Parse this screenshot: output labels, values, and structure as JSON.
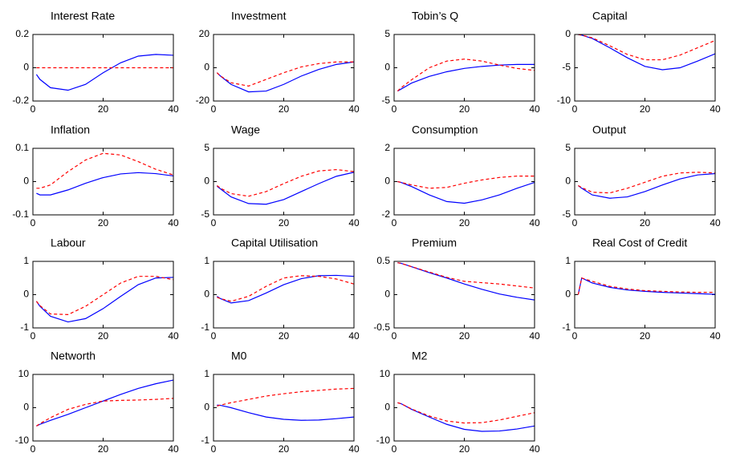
{
  "chart_data": [
    {
      "type": "line",
      "title": "Interest Rate",
      "x": [
        1,
        2,
        5,
        10,
        15,
        20,
        25,
        30,
        35,
        40
      ],
      "xlim": [
        0,
        40
      ],
      "xticks": [
        0,
        20,
        40
      ],
      "ylim": [
        -0.2,
        0.2
      ],
      "yticks": [
        -0.2,
        0,
        0.2
      ],
      "grid": false,
      "series": [
        {
          "color": "#0000ff",
          "line_style": "solid",
          "values": [
            -0.04,
            -0.07,
            -0.12,
            -0.135,
            -0.1,
            -0.03,
            0.03,
            0.07,
            0.08,
            0.075
          ]
        },
        {
          "color": "#ff0000",
          "line_style": "dashed",
          "values": [
            0,
            0,
            0,
            0,
            0,
            0,
            0,
            0,
            0,
            0
          ]
        }
      ]
    },
    {
      "type": "line",
      "title": "Investment",
      "x": [
        1,
        2,
        5,
        10,
        15,
        20,
        25,
        30,
        35,
        40
      ],
      "xlim": [
        0,
        40
      ],
      "xticks": [
        0,
        20,
        40
      ],
      "ylim": [
        -20,
        20
      ],
      "yticks": [
        -20,
        0,
        20
      ],
      "grid": false,
      "series": [
        {
          "color": "#0000ff",
          "line_style": "solid",
          "values": [
            -3,
            -5,
            -10,
            -14.5,
            -14,
            -10,
            -5,
            -1,
            2,
            3.5
          ]
        },
        {
          "color": "#ff0000",
          "line_style": "dashed",
          "values": [
            -3,
            -5,
            -9,
            -11,
            -7,
            -3,
            0.5,
            2.5,
            3.5,
            3.5
          ]
        }
      ]
    },
    {
      "type": "line",
      "title": "Tobin’s Q",
      "x": [
        1,
        2,
        5,
        10,
        15,
        20,
        25,
        30,
        35,
        40
      ],
      "xlim": [
        0,
        40
      ],
      "xticks": [
        0,
        20,
        40
      ],
      "ylim": [
        -5,
        5
      ],
      "yticks": [
        -5,
        0,
        5
      ],
      "grid": false,
      "series": [
        {
          "color": "#0000ff",
          "line_style": "solid",
          "values": [
            -3.5,
            -3.2,
            -2.3,
            -1.3,
            -0.6,
            -0.1,
            0.2,
            0.4,
            0.5,
            0.5
          ]
        },
        {
          "color": "#ff0000",
          "line_style": "dashed",
          "values": [
            -3.5,
            -3,
            -1.8,
            0,
            1,
            1.3,
            1,
            0.4,
            -0.1,
            -0.4
          ]
        }
      ]
    },
    {
      "type": "line",
      "title": "Capital",
      "x": [
        1,
        2,
        5,
        10,
        15,
        20,
        25,
        30,
        35,
        40
      ],
      "xlim": [
        0,
        40
      ],
      "xticks": [
        0,
        20,
        40
      ],
      "ylim": [
        -10,
        0
      ],
      "yticks": [
        -10,
        -5,
        0
      ],
      "grid": false,
      "series": [
        {
          "color": "#0000ff",
          "line_style": "solid",
          "values": [
            0,
            -0.1,
            -0.6,
            -2,
            -3.5,
            -4.8,
            -5.3,
            -5,
            -4,
            -2.9
          ]
        },
        {
          "color": "#ff0000",
          "line_style": "dashed",
          "values": [
            0,
            -0.1,
            -0.5,
            -1.7,
            -3,
            -3.8,
            -3.8,
            -3.1,
            -2,
            -0.9
          ]
        }
      ]
    },
    {
      "type": "line",
      "title": "Inflation",
      "x": [
        1,
        2,
        5,
        10,
        15,
        20,
        25,
        30,
        35,
        40
      ],
      "xlim": [
        0,
        40
      ],
      "xticks": [
        0,
        20,
        40
      ],
      "ylim": [
        -0.1,
        0.1
      ],
      "yticks": [
        -0.1,
        0,
        0.1
      ],
      "grid": false,
      "series": [
        {
          "color": "#0000ff",
          "line_style": "solid",
          "values": [
            -0.035,
            -0.04,
            -0.04,
            -0.025,
            -0.005,
            0.012,
            0.023,
            0.027,
            0.024,
            0.017
          ]
        },
        {
          "color": "#ff0000",
          "line_style": "dashed",
          "values": [
            -0.02,
            -0.02,
            -0.01,
            0.03,
            0.065,
            0.085,
            0.08,
            0.06,
            0.037,
            0.02
          ]
        }
      ]
    },
    {
      "type": "line",
      "title": "Wage",
      "x": [
        1,
        2,
        5,
        10,
        15,
        20,
        25,
        30,
        35,
        40
      ],
      "xlim": [
        0,
        40
      ],
      "xticks": [
        0,
        20,
        40
      ],
      "ylim": [
        -5,
        5
      ],
      "yticks": [
        -5,
        0,
        5
      ],
      "grid": false,
      "series": [
        {
          "color": "#0000ff",
          "line_style": "solid",
          "values": [
            -0.7,
            -1.1,
            -2.3,
            -3.3,
            -3.4,
            -2.7,
            -1.5,
            -0.3,
            0.8,
            1.4
          ]
        },
        {
          "color": "#ff0000",
          "line_style": "dashed",
          "values": [
            -0.6,
            -1,
            -1.8,
            -2.2,
            -1.5,
            -0.3,
            0.8,
            1.6,
            1.8,
            1.5
          ]
        }
      ]
    },
    {
      "type": "line",
      "title": "Consumption",
      "x": [
        1,
        2,
        5,
        10,
        15,
        20,
        25,
        30,
        35,
        40
      ],
      "xlim": [
        0,
        40
      ],
      "xticks": [
        0,
        20,
        40
      ],
      "ylim": [
        -2,
        2
      ],
      "yticks": [
        -2,
        0,
        2
      ],
      "grid": false,
      "series": [
        {
          "color": "#0000ff",
          "line_style": "solid",
          "values": [
            0,
            -0.05,
            -0.3,
            -0.8,
            -1.2,
            -1.3,
            -1.1,
            -0.8,
            -0.4,
            -0.05
          ]
        },
        {
          "color": "#ff0000",
          "line_style": "dashed",
          "values": [
            0,
            -0.05,
            -0.2,
            -0.4,
            -0.35,
            -0.1,
            0.1,
            0.25,
            0.33,
            0.33
          ]
        }
      ]
    },
    {
      "type": "line",
      "title": "Output",
      "x": [
        1,
        2,
        5,
        10,
        15,
        20,
        25,
        30,
        35,
        40
      ],
      "xlim": [
        0,
        40
      ],
      "xticks": [
        0,
        20,
        40
      ],
      "ylim": [
        -5,
        5
      ],
      "yticks": [
        -5,
        0,
        5
      ],
      "grid": false,
      "series": [
        {
          "color": "#0000ff",
          "line_style": "solid",
          "values": [
            -0.6,
            -1,
            -2,
            -2.5,
            -2.3,
            -1.5,
            -0.5,
            0.4,
            1,
            1.2
          ]
        },
        {
          "color": "#ff0000",
          "line_style": "dashed",
          "values": [
            -0.6,
            -0.9,
            -1.6,
            -1.7,
            -1,
            -0.1,
            0.8,
            1.3,
            1.4,
            1.3
          ]
        }
      ]
    },
    {
      "type": "line",
      "title": "Labour",
      "x": [
        1,
        2,
        5,
        10,
        15,
        20,
        25,
        30,
        35,
        40
      ],
      "xlim": [
        0,
        40
      ],
      "xticks": [
        0,
        20,
        40
      ],
      "ylim": [
        -1,
        1
      ],
      "yticks": [
        -1,
        0,
        1
      ],
      "grid": false,
      "series": [
        {
          "color": "#0000ff",
          "line_style": "solid",
          "values": [
            -0.2,
            -0.35,
            -0.65,
            -0.82,
            -0.72,
            -0.42,
            -0.05,
            0.3,
            0.5,
            0.52
          ]
        },
        {
          "color": "#ff0000",
          "line_style": "dashed",
          "values": [
            -0.2,
            -0.33,
            -0.58,
            -0.6,
            -0.35,
            0,
            0.35,
            0.55,
            0.55,
            0.45
          ]
        }
      ]
    },
    {
      "type": "line",
      "title": "Capital Utilisation",
      "x": [
        1,
        2,
        5,
        10,
        15,
        20,
        25,
        30,
        35,
        40
      ],
      "xlim": [
        0,
        40
      ],
      "xticks": [
        0,
        20,
        40
      ],
      "ylim": [
        -1,
        1
      ],
      "yticks": [
        -1,
        0,
        1
      ],
      "grid": false,
      "series": [
        {
          "color": "#0000ff",
          "line_style": "solid",
          "values": [
            -0.05,
            -0.12,
            -0.25,
            -0.18,
            0.05,
            0.3,
            0.48,
            0.57,
            0.58,
            0.55
          ]
        },
        {
          "color": "#ff0000",
          "line_style": "dashed",
          "values": [
            -0.08,
            -0.12,
            -0.2,
            -0.05,
            0.25,
            0.5,
            0.57,
            0.55,
            0.47,
            0.32
          ]
        }
      ]
    },
    {
      "type": "line",
      "title": "Premium",
      "x": [
        1,
        2,
        5,
        10,
        15,
        20,
        25,
        30,
        35,
        40
      ],
      "xlim": [
        0,
        40
      ],
      "xticks": [
        0,
        20,
        40
      ],
      "ylim": [
        -0.5,
        0.5
      ],
      "yticks": [
        -0.5,
        0,
        0.5
      ],
      "grid": false,
      "series": [
        {
          "color": "#0000ff",
          "line_style": "solid",
          "values": [
            0.48,
            0.47,
            0.42,
            0.33,
            0.25,
            0.16,
            0.08,
            0.01,
            -0.04,
            -0.08
          ]
        },
        {
          "color": "#ff0000",
          "line_style": "dashed",
          "values": [
            0.48,
            0.47,
            0.42,
            0.34,
            0.26,
            0.2,
            0.18,
            0.16,
            0.13,
            0.1
          ]
        }
      ]
    },
    {
      "type": "line",
      "title": "Real Cost of Credit",
      "x": [
        1,
        2,
        5,
        10,
        15,
        20,
        25,
        30,
        35,
        40
      ],
      "xlim": [
        0,
        40
      ],
      "xticks": [
        0,
        20,
        40
      ],
      "ylim": [
        -1,
        1
      ],
      "yticks": [
        -1,
        0,
        1
      ],
      "grid": false,
      "series": [
        {
          "color": "#0000ff",
          "line_style": "solid",
          "values": [
            0,
            0.5,
            0.35,
            0.22,
            0.14,
            0.1,
            0.07,
            0.05,
            0.03,
            0.01
          ]
        },
        {
          "color": "#ff0000",
          "line_style": "dashed",
          "values": [
            0,
            0.5,
            0.4,
            0.25,
            0.17,
            0.12,
            0.1,
            0.08,
            0.07,
            0.07
          ]
        }
      ]
    },
    {
      "type": "line",
      "title": "Networth",
      "x": [
        1,
        2,
        5,
        10,
        15,
        20,
        25,
        30,
        35,
        40
      ],
      "xlim": [
        0,
        40
      ],
      "xticks": [
        0,
        20,
        40
      ],
      "ylim": [
        -10,
        10
      ],
      "yticks": [
        -10,
        0,
        10
      ],
      "grid": false,
      "series": [
        {
          "color": "#0000ff",
          "line_style": "solid",
          "values": [
            -5.5,
            -5,
            -3.8,
            -2,
            0,
            2,
            4,
            5.8,
            7.2,
            8.3
          ]
        },
        {
          "color": "#ff0000",
          "line_style": "dashed",
          "values": [
            -5.5,
            -4.8,
            -3,
            -0.5,
            1,
            2,
            2.2,
            2.3,
            2.5,
            2.8
          ]
        }
      ]
    },
    {
      "type": "line",
      "title": "M0",
      "x": [
        1,
        2,
        5,
        10,
        15,
        20,
        25,
        30,
        35,
        40
      ],
      "xlim": [
        0,
        40
      ],
      "xticks": [
        0,
        20,
        40
      ],
      "ylim": [
        -1,
        1
      ],
      "yticks": [
        -1,
        0,
        1
      ],
      "grid": false,
      "series": [
        {
          "color": "#0000ff",
          "line_style": "solid",
          "values": [
            0.08,
            0.07,
            0,
            -0.15,
            -0.28,
            -0.35,
            -0.38,
            -0.37,
            -0.33,
            -0.28
          ]
        },
        {
          "color": "#ff0000",
          "line_style": "dashed",
          "values": [
            0.05,
            0.08,
            0.15,
            0.25,
            0.35,
            0.42,
            0.48,
            0.52,
            0.56,
            0.58
          ]
        }
      ]
    },
    {
      "type": "line",
      "title": "M2",
      "x": [
        1,
        2,
        5,
        10,
        15,
        20,
        25,
        30,
        35,
        40
      ],
      "xlim": [
        0,
        40
      ],
      "xticks": [
        0,
        20,
        40
      ],
      "ylim": [
        -10,
        10
      ],
      "yticks": [
        -10,
        0,
        10
      ],
      "grid": false,
      "series": [
        {
          "color": "#0000ff",
          "line_style": "solid",
          "values": [
            1.5,
            1.2,
            -0.5,
            -2.8,
            -5,
            -6.5,
            -7.1,
            -7,
            -6.4,
            -5.5
          ]
        },
        {
          "color": "#ff0000",
          "line_style": "dashed",
          "values": [
            1.5,
            1.2,
            -0.4,
            -2.5,
            -4,
            -4.6,
            -4.5,
            -3.7,
            -2.6,
            -1.5
          ]
        }
      ]
    }
  ]
}
